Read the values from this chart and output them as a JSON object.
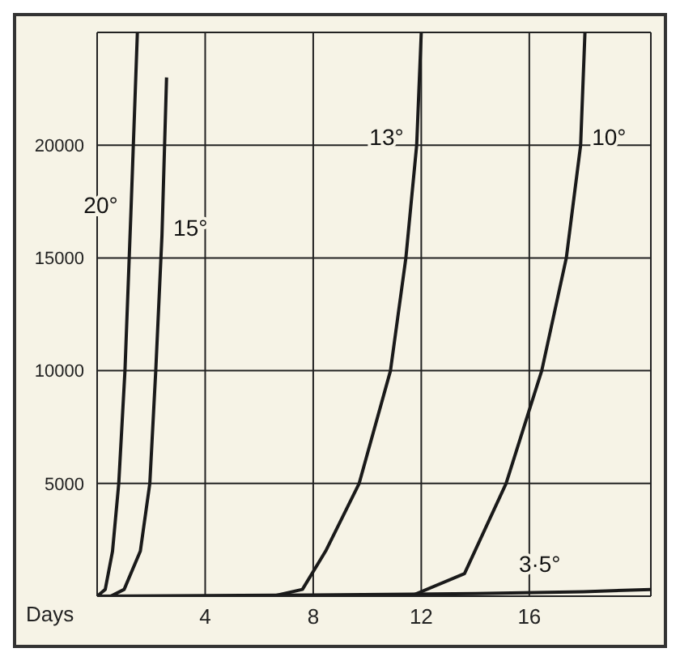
{
  "chart_data": {
    "type": "line",
    "xlabel": "Days",
    "xlim": [
      0,
      20.5
    ],
    "xticks": [
      4,
      8,
      12,
      16
    ],
    "ylim": [
      0,
      25000
    ],
    "yticks": [
      5000,
      10000,
      15000,
      20000
    ],
    "grid": true,
    "marker": "none",
    "line_style": "solid",
    "series": [
      {
        "name": "20°",
        "color": "#1a1a1a",
        "x": [
          0,
          0.3,
          0.57,
          0.8,
          1.03,
          1.25,
          1.49
        ],
        "values": [
          0,
          300,
          2000,
          5000,
          10000,
          17000,
          25000
        ]
      },
      {
        "name": "15°",
        "color": "#1a1a1a",
        "x": [
          0.5,
          1.0,
          1.6,
          1.95,
          2.17,
          2.4,
          2.57
        ],
        "values": [
          0,
          300,
          2000,
          5000,
          10000,
          16000,
          23000
        ]
      },
      {
        "name": "13°",
        "color": "#1a1a1a",
        "x": [
          6.5,
          7.6,
          8.46,
          9.7,
          10.86,
          11.43,
          11.83,
          12.0
        ],
        "values": [
          0,
          300,
          2000,
          5000,
          10000,
          15000,
          20000,
          25000
        ]
      },
      {
        "name": "10°",
        "color": "#1a1a1a",
        "x": [
          11.6,
          13.6,
          15.14,
          16.46,
          17.37,
          17.9,
          18.06
        ],
        "values": [
          0,
          1000,
          5000,
          10000,
          15000,
          20000,
          25000
        ]
      },
      {
        "name": "3·5°",
        "color": "#1a1a1a",
        "x": [
          0,
          8,
          14,
          18,
          20.5
        ],
        "values": [
          0,
          50,
          120,
          200,
          300
        ]
      }
    ]
  }
}
